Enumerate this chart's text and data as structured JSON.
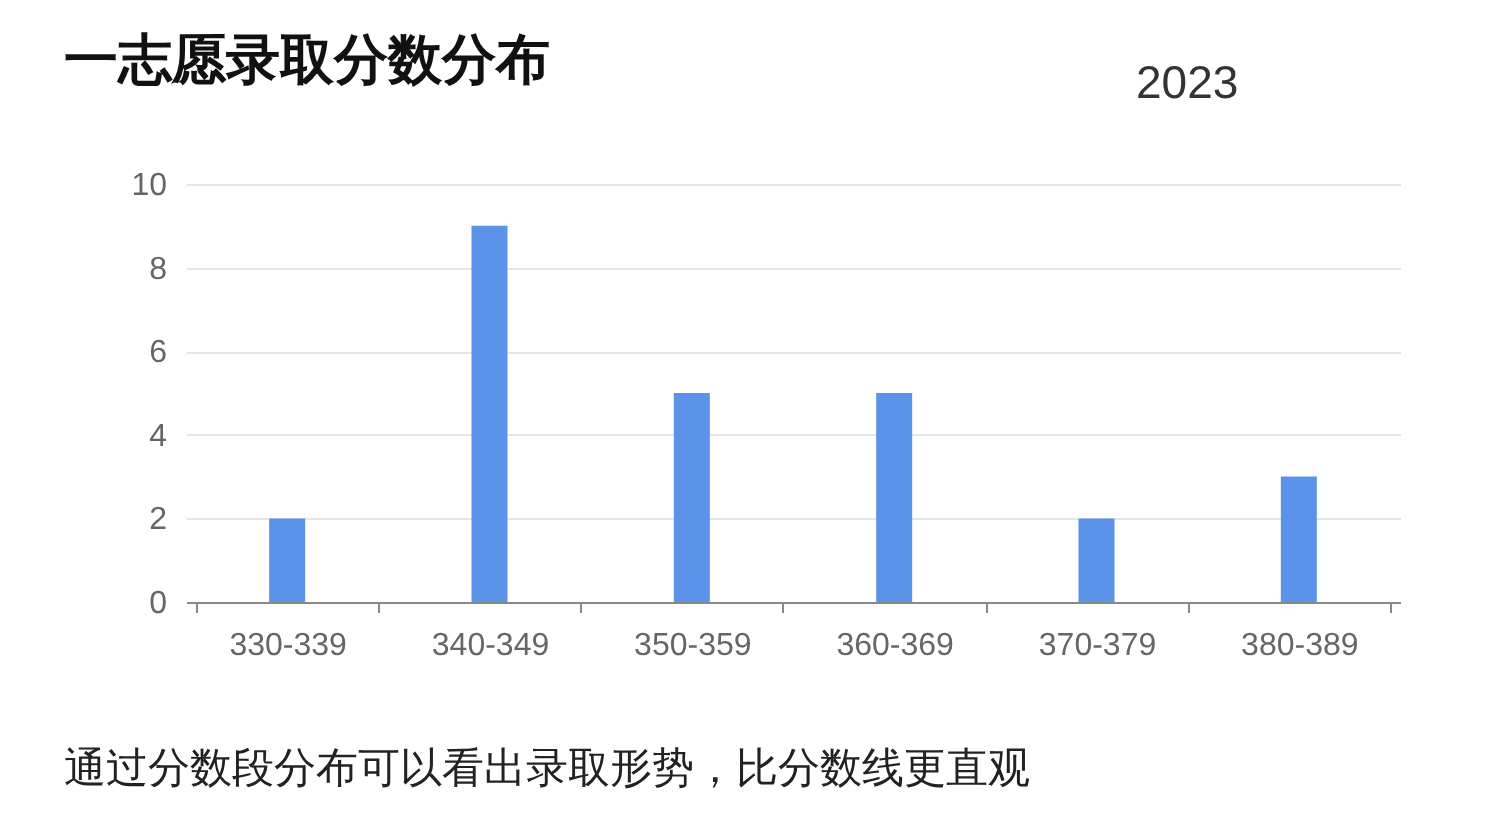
{
  "chart_data": {
    "type": "bar",
    "title": "一志愿录取分数分布",
    "subtitle": "2023",
    "categories": [
      "330-339",
      "340-349",
      "350-359",
      "360-369",
      "370-379",
      "380-389"
    ],
    "values": [
      2,
      9,
      5,
      5,
      2,
      3
    ],
    "color": "#5b93e8",
    "ylim": [
      0,
      10
    ],
    "yticks": [
      0,
      2,
      4,
      6,
      8,
      10
    ],
    "grid": "y",
    "annotations": [
      "通过分数段分布可以看出录取形势，比分数线更直观"
    ]
  }
}
